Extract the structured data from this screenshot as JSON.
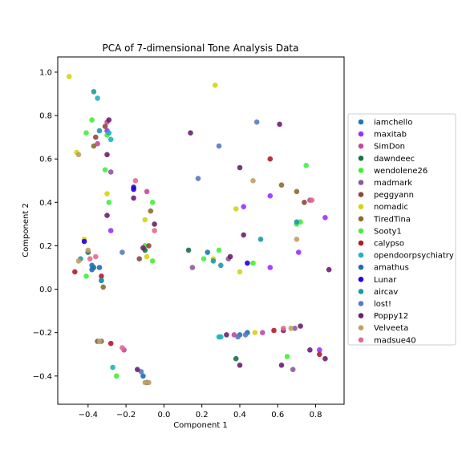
{
  "chart_data": {
    "type": "scatter",
    "title": "PCA of 7-dimensional Tone Analysis Data",
    "xlabel": "Component 1",
    "ylabel": "Component 2",
    "xlim": [
      -0.56,
      0.95
    ],
    "ylim": [
      -0.53,
      1.07
    ],
    "xticks": [
      {
        "value": -0.4,
        "label": "−0.4"
      },
      {
        "value": -0.2,
        "label": "−0.2"
      },
      {
        "value": 0.0,
        "label": "0.0"
      },
      {
        "value": 0.2,
        "label": "0.2"
      },
      {
        "value": 0.4,
        "label": "0.4"
      },
      {
        "value": 0.6,
        "label": "0.6"
      },
      {
        "value": 0.8,
        "label": "0.8"
      }
    ],
    "yticks": [
      {
        "value": -0.4,
        "label": "−0.4"
      },
      {
        "value": -0.2,
        "label": "−0.2"
      },
      {
        "value": 0.0,
        "label": "0.0"
      },
      {
        "value": 0.2,
        "label": "0.2"
      },
      {
        "value": 0.4,
        "label": "0.4"
      },
      {
        "value": 0.6,
        "label": "0.6"
      },
      {
        "value": 0.8,
        "label": "0.8"
      },
      {
        "value": 1.0,
        "label": "1.0"
      }
    ],
    "grid": false,
    "legend_position": "right",
    "series": [
      {
        "name": "iamchello",
        "color": "#1f77b4",
        "points": [
          [
            -0.38,
            0.11
          ],
          [
            0.23,
            0.17
          ],
          [
            0.4,
            -0.21
          ],
          [
            -0.33,
            0.04
          ]
        ]
      },
      {
        "name": "maxitab",
        "color": "#9b30ff",
        "points": [
          [
            -0.3,
            0.73
          ],
          [
            -0.28,
            0.27
          ],
          [
            0.42,
            0.38
          ],
          [
            0.56,
            0.43
          ],
          [
            0.85,
            0.33
          ],
          [
            0.56,
            0.1
          ],
          [
            0.71,
            0.17
          ],
          [
            0.82,
            -0.28
          ]
        ]
      },
      {
        "name": "SimDon",
        "color": "#c04aa0",
        "points": [
          [
            -0.3,
            0.77
          ],
          [
            -0.35,
            0.67
          ],
          [
            -0.09,
            0.45
          ],
          [
            0.37,
            -0.21
          ],
          [
            0.52,
            -0.2
          ],
          [
            0.77,
            0.41
          ],
          [
            -0.21,
            -0.28
          ]
        ]
      },
      {
        "name": "dawndeec",
        "color": "#1b6f4b",
        "points": [
          [
            0.13,
            0.18
          ],
          [
            0.38,
            -0.32
          ],
          [
            -0.1,
            0.18
          ],
          [
            -0.4,
            0.17
          ]
        ]
      },
      {
        "name": "wendolene26",
        "color": "#44ee33",
        "points": [
          [
            -0.38,
            0.78
          ],
          [
            -0.3,
            0.71
          ],
          [
            -0.1,
            0.2
          ],
          [
            -0.06,
            0.4
          ],
          [
            -0.06,
            0.13
          ],
          [
            0.47,
            0.12
          ],
          [
            0.65,
            -0.31
          ],
          [
            -0.25,
            -0.4
          ],
          [
            0.72,
            0.31
          ]
        ]
      },
      {
        "name": "madmark",
        "color": "#8a5a9a",
        "points": [
          [
            -0.28,
            0.54
          ],
          [
            0.15,
            0.1
          ],
          [
            0.34,
            0.14
          ],
          [
            0.68,
            -0.37
          ],
          [
            0.69,
            -0.18
          ]
        ]
      },
      {
        "name": "peggyann",
        "color": "#8b4a3e",
        "points": [
          [
            -0.36,
            0.7
          ],
          [
            -0.31,
            0.75
          ],
          [
            -0.08,
            0.2
          ],
          [
            -0.35,
            -0.24
          ],
          [
            -0.13,
            0.14
          ],
          [
            0.74,
            0.4
          ]
        ]
      },
      {
        "name": "nomadic",
        "color": "#d4d412",
        "points": [
          [
            -0.5,
            0.98
          ],
          [
            0.27,
            0.94
          ],
          [
            -0.46,
            0.63
          ],
          [
            0.38,
            0.37
          ],
          [
            -0.3,
            0.44
          ],
          [
            0.4,
            0.08
          ],
          [
            -0.09,
            0.15
          ],
          [
            0.26,
            0.14
          ],
          [
            -0.1,
            0.32
          ],
          [
            0.48,
            -0.2
          ],
          [
            -0.42,
            0.23
          ]
        ]
      },
      {
        "name": "TiredTina",
        "color": "#8b6b2e",
        "points": [
          [
            -0.37,
            0.66
          ],
          [
            -0.07,
            0.36
          ],
          [
            0.7,
            0.45
          ],
          [
            0.62,
            0.48
          ],
          [
            -0.32,
            0.01
          ],
          [
            -0.33,
            -0.24
          ]
        ]
      },
      {
        "name": "Sooty1",
        "color": "#44ee44",
        "points": [
          [
            -0.41,
            0.72
          ],
          [
            -0.31,
            0.55
          ],
          [
            -0.29,
            0.4
          ],
          [
            -0.41,
            0.06
          ],
          [
            0.29,
            0.18
          ],
          [
            0.7,
            0.3
          ],
          [
            0.75,
            0.57
          ],
          [
            0.21,
            0.14
          ]
        ]
      },
      {
        "name": "calypso",
        "color": "#b01c2c",
        "points": [
          [
            0.56,
            0.6
          ],
          [
            -0.47,
            0.08
          ],
          [
            -0.33,
            0.06
          ],
          [
            0.58,
            -0.19
          ],
          [
            -0.28,
            -0.25
          ],
          [
            0.82,
            -0.3
          ]
        ]
      },
      {
        "name": "opendoorpsychiatry",
        "color": "#1fb2c2",
        "points": [
          [
            -0.35,
            0.88
          ],
          [
            -0.28,
            0.69
          ],
          [
            -0.29,
            0.72
          ],
          [
            -0.27,
            -0.36
          ],
          [
            0.29,
            -0.22
          ],
          [
            0.3,
            -0.22
          ],
          [
            -0.34,
            -0.24
          ]
        ]
      },
      {
        "name": "amathus",
        "color": "#1f6fb0",
        "points": [
          [
            -0.38,
            0.09
          ],
          [
            -0.34,
            0.1
          ],
          [
            -0.37,
            0.1
          ],
          [
            0.44,
            -0.2
          ],
          [
            -0.11,
            -0.4
          ],
          [
            -0.09,
            -0.43
          ]
        ]
      },
      {
        "name": "Lunar",
        "color": "#2200dd",
        "points": [
          [
            -0.42,
            0.22
          ],
          [
            0.44,
            0.12
          ],
          [
            -0.16,
            0.46
          ],
          [
            -0.16,
            0.47
          ]
        ]
      },
      {
        "name": "aircav",
        "color": "#2196a8",
        "points": [
          [
            -0.37,
            0.91
          ],
          [
            -0.34,
            0.73
          ],
          [
            -0.44,
            0.14
          ],
          [
            0.3,
            0.11
          ],
          [
            0.51,
            0.23
          ],
          [
            0.7,
            0.31
          ],
          [
            0.26,
            0.13
          ],
          [
            -0.33,
            0.04
          ]
        ]
      },
      {
        "name": "lost!",
        "color": "#5a7abf",
        "points": [
          [
            0.49,
            0.77
          ],
          [
            0.29,
            0.66
          ],
          [
            0.18,
            0.51
          ],
          [
            -0.22,
            0.17
          ],
          [
            0.43,
            -0.21
          ],
          [
            -0.12,
            -0.38
          ],
          [
            0.39,
            -0.22
          ]
        ]
      },
      {
        "name": "Poppy12",
        "color": "#6a2070",
        "points": [
          [
            -0.29,
            0.78
          ],
          [
            0.61,
            0.76
          ],
          [
            0.14,
            0.72
          ],
          [
            -0.3,
            0.62
          ],
          [
            0.4,
            0.56
          ],
          [
            -0.16,
            0.42
          ],
          [
            0.42,
            0.25
          ],
          [
            -0.11,
            0.19
          ],
          [
            -0.3,
            0.34
          ],
          [
            0.35,
            0.15
          ],
          [
            -0.05,
            0.3
          ],
          [
            0.87,
            0.09
          ],
          [
            0.63,
            -0.19
          ],
          [
            0.72,
            -0.17
          ],
          [
            0.77,
            -0.28
          ],
          [
            0.4,
            -0.35
          ],
          [
            0.62,
            -0.35
          ],
          [
            0.85,
            -0.32
          ],
          [
            0.33,
            -0.21
          ],
          [
            -0.14,
            -0.37
          ]
        ]
      },
      {
        "name": "Velveeta",
        "color": "#bfa063",
        "points": [
          [
            -0.45,
            0.62
          ],
          [
            0.47,
            0.5
          ],
          [
            0.7,
            0.23
          ],
          [
            -0.45,
            0.13
          ],
          [
            -0.4,
            0.18
          ],
          [
            -0.34,
            -0.24
          ],
          [
            0.67,
            -0.18
          ],
          [
            -0.1,
            -0.43
          ],
          [
            -0.08,
            -0.43
          ]
        ]
      },
      {
        "name": "madsue40",
        "color": "#e06c8c",
        "points": [
          [
            -0.15,
            0.5
          ],
          [
            -0.05,
            0.27
          ],
          [
            -0.39,
            0.14
          ],
          [
            0.78,
            0.41
          ],
          [
            -0.36,
            0.15
          ],
          [
            0.63,
            -0.18
          ],
          [
            -0.22,
            -0.27
          ]
        ]
      }
    ]
  }
}
